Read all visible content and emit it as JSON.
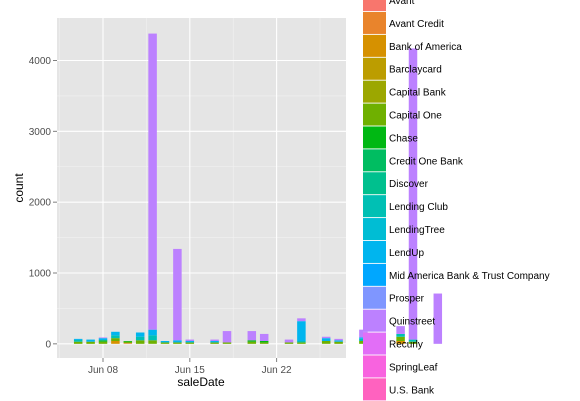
{
  "chart_data": {
    "type": "bar",
    "stacked": true,
    "title": "",
    "xlabel": "saleDate",
    "ylabel": "count",
    "x_ticks": [
      "Jun 08",
      "Jun 15",
      "Jun 22"
    ],
    "y_ticks": [
      0,
      1000,
      2000,
      3000,
      4000
    ],
    "ylim": [
      -200,
      4600
    ],
    "grid": true,
    "legend_position": "right",
    "series": [
      {
        "name": "Avant",
        "color": "#F8766D"
      },
      {
        "name": "Avant Credit",
        "color": "#E9842C"
      },
      {
        "name": "Bank of America",
        "color": "#D69100"
      },
      {
        "name": "Barclaycard",
        "color": "#BC9D00"
      },
      {
        "name": "Capital Bank",
        "color": "#9CA700"
      },
      {
        "name": "Capital One",
        "color": "#6FB000"
      },
      {
        "name": "Chase",
        "color": "#00B813"
      },
      {
        "name": "Credit One Bank",
        "color": "#00BD61"
      },
      {
        "name": "Discover",
        "color": "#00C08E"
      },
      {
        "name": "Lending Club",
        "color": "#00C0B4"
      },
      {
        "name": "LendingTree",
        "color": "#00BDD4"
      },
      {
        "name": "LendUp",
        "color": "#00B5EE"
      },
      {
        "name": "Mid America Bank & Trust Company",
        "color": "#00A7FF"
      },
      {
        "name": "Prosper",
        "color": "#7F96FF"
      },
      {
        "name": "Quinstreet",
        "color": "#BC81FF"
      },
      {
        "name": "Recurly",
        "color": "#E26EF7"
      },
      {
        "name": "SpringLeaf",
        "color": "#F863DF"
      },
      {
        "name": "U.S. Bank",
        "color": "#FF62BF"
      }
    ],
    "dates": [
      {
        "date": "2015-06-06",
        "segments": [
          {
            "series": "Capital One",
            "value": 30
          },
          {
            "series": "Lending Club",
            "value": 25
          },
          {
            "series": "LendUp",
            "value": 15
          }
        ]
      },
      {
        "date": "2015-06-07",
        "segments": [
          {
            "series": "Capital One",
            "value": 30
          },
          {
            "series": "LendUp",
            "value": 30
          }
        ]
      },
      {
        "date": "2015-06-08",
        "segments": [
          {
            "series": "Capital One",
            "value": 30
          },
          {
            "series": "Chase",
            "value": 20
          },
          {
            "series": "LendUp",
            "value": 30
          },
          {
            "series": "Quinstreet",
            "value": 10
          }
        ]
      },
      {
        "date": "2015-06-09",
        "segments": [
          {
            "series": "Bank of America",
            "value": 40
          },
          {
            "series": "Capital One",
            "value": 40
          },
          {
            "series": "Lending Club",
            "value": 40
          },
          {
            "series": "LendUp",
            "value": 50
          }
        ]
      },
      {
        "date": "2015-06-10",
        "segments": [
          {
            "series": "Avant Credit",
            "value": 10
          },
          {
            "series": "Capital One",
            "value": 20
          },
          {
            "series": "Chase",
            "value": 10
          }
        ]
      },
      {
        "date": "2015-06-11",
        "segments": [
          {
            "series": "Capital One",
            "value": 50
          },
          {
            "series": "Lending Club",
            "value": 50
          },
          {
            "series": "LendUp",
            "value": 60
          }
        ]
      },
      {
        "date": "2015-06-12",
        "segments": [
          {
            "series": "Capital One",
            "value": 50
          },
          {
            "series": "Lending Club",
            "value": 70
          },
          {
            "series": "LendUp",
            "value": 80
          },
          {
            "series": "Quinstreet",
            "value": 4180
          }
        ]
      },
      {
        "date": "2015-06-13",
        "segments": [
          {
            "series": "Capital One",
            "value": 20
          },
          {
            "series": "LendUp",
            "value": 20
          }
        ]
      },
      {
        "date": "2015-06-14",
        "segments": [
          {
            "series": "Capital One",
            "value": 20
          },
          {
            "series": "LendUp",
            "value": 30
          },
          {
            "series": "Quinstreet",
            "value": 1290
          }
        ]
      },
      {
        "date": "2015-06-15",
        "segments": [
          {
            "series": "Capital One",
            "value": 20
          },
          {
            "series": "LendUp",
            "value": 20
          },
          {
            "series": "Quinstreet",
            "value": 20
          }
        ]
      },
      {
        "date": "2015-06-17",
        "segments": [
          {
            "series": "Capital One",
            "value": 20
          },
          {
            "series": "LendUp",
            "value": 20
          },
          {
            "series": "Quinstreet",
            "value": 20
          }
        ]
      },
      {
        "date": "2015-06-18",
        "segments": [
          {
            "series": "Capital One",
            "value": 20
          },
          {
            "series": "Quinstreet",
            "value": 160
          }
        ]
      },
      {
        "date": "2015-06-20",
        "segments": [
          {
            "series": "Capital One",
            "value": 30
          },
          {
            "series": "Chase",
            "value": 20
          },
          {
            "series": "Quinstreet",
            "value": 130
          }
        ]
      },
      {
        "date": "2015-06-21",
        "segments": [
          {
            "series": "Capital One",
            "value": 20
          },
          {
            "series": "Chase",
            "value": 20
          },
          {
            "series": "Quinstreet",
            "value": 100
          }
        ]
      },
      {
        "date": "2015-06-23",
        "segments": [
          {
            "series": "Capital One",
            "value": 20
          },
          {
            "series": "Quinstreet",
            "value": 40
          }
        ]
      },
      {
        "date": "2015-06-24",
        "segments": [
          {
            "series": "Capital One",
            "value": 20
          },
          {
            "series": "Lending Club",
            "value": 20
          },
          {
            "series": "LendUp",
            "value": 280
          },
          {
            "series": "Quinstreet",
            "value": 40
          }
        ]
      },
      {
        "date": "2015-06-26",
        "segments": [
          {
            "series": "Capital One",
            "value": 40
          },
          {
            "series": "LendUp",
            "value": 40
          },
          {
            "series": "Quinstreet",
            "value": 20
          }
        ]
      },
      {
        "date": "2015-06-27",
        "segments": [
          {
            "series": "Capital One",
            "value": 30
          },
          {
            "series": "LendUp",
            "value": 20
          },
          {
            "series": "Quinstreet",
            "value": 20
          }
        ]
      },
      {
        "date": "2015-06-29",
        "segments": [
          {
            "series": "Capital One",
            "value": 40
          },
          {
            "series": "Lending Club",
            "value": 30
          },
          {
            "series": "LendUp",
            "value": 20
          },
          {
            "series": "Quinstreet",
            "value": 110
          }
        ]
      },
      {
        "date": "2015-06-30",
        "segments": [
          {
            "series": "Capital One",
            "value": 40
          },
          {
            "series": "Lending Club",
            "value": 30
          },
          {
            "series": "Quinstreet",
            "value": 90
          }
        ]
      },
      {
        "date": "2015-07-02",
        "segments": [
          {
            "series": "Bank of America",
            "value": 40
          },
          {
            "series": "Capital One",
            "value": 60
          },
          {
            "series": "Lending Club",
            "value": 40
          },
          {
            "series": "Quinstreet",
            "value": 110
          }
        ]
      },
      {
        "date": "2015-07-03",
        "segments": [
          {
            "series": "Capital One",
            "value": 30
          },
          {
            "series": "Lending Club",
            "value": 30
          },
          {
            "series": "Quinstreet",
            "value": 4110
          }
        ]
      },
      {
        "date": "2015-07-05",
        "segments": [
          {
            "series": "Quinstreet",
            "value": 710
          }
        ]
      }
    ]
  }
}
